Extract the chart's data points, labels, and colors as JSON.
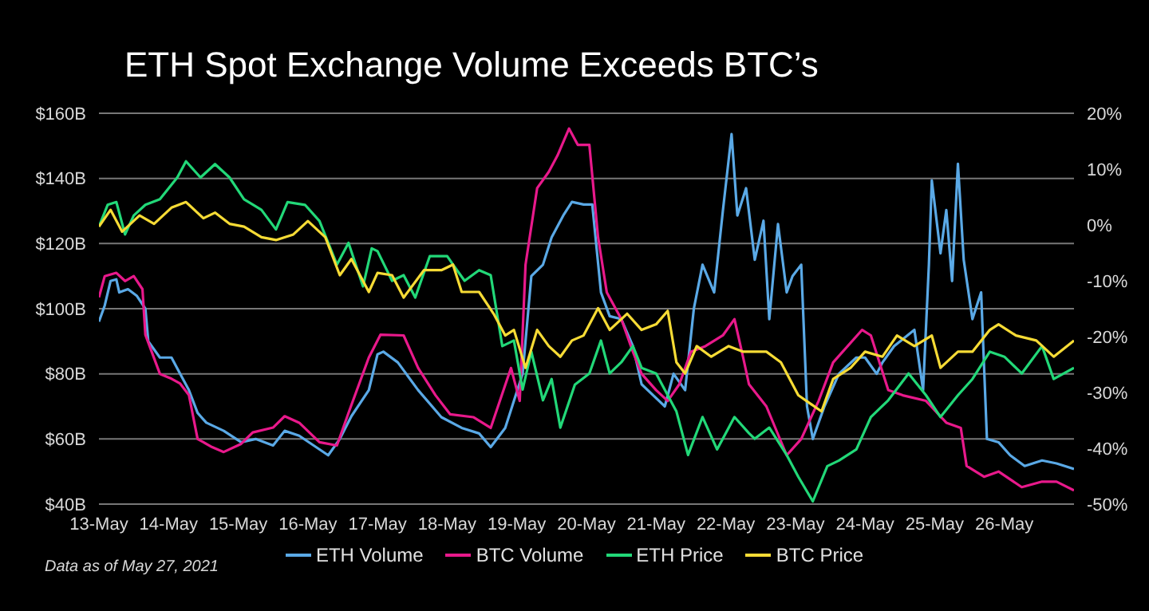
{
  "chart_data": {
    "type": "line",
    "title": "ETH Spot Exchange Volume Exceeds BTC’s",
    "annotations": [
      "Data as of May 27, 2021"
    ],
    "grid": "y",
    "legend": "bottom",
    "marker": "none",
    "line_style": "solid",
    "xlim": [
      "2021-05-13",
      "2021-05-27"
    ],
    "xticks": [
      {
        "value": "2021-05-13",
        "label": "13-May"
      },
      {
        "value": "2021-05-14",
        "label": "14-May"
      },
      {
        "value": "2021-05-15",
        "label": "15-May"
      },
      {
        "value": "2021-05-16",
        "label": "16-May"
      },
      {
        "value": "2021-05-17",
        "label": "17-May"
      },
      {
        "value": "2021-05-18",
        "label": "18-May"
      },
      {
        "value": "2021-05-19",
        "label": "19-May"
      },
      {
        "value": "2021-05-20",
        "label": "20-May"
      },
      {
        "value": "2021-05-21",
        "label": "21-May"
      },
      {
        "value": "2021-05-22",
        "label": "22-May"
      },
      {
        "value": "2021-05-23",
        "label": "23-May"
      },
      {
        "value": "2021-05-24",
        "label": "24-May"
      },
      {
        "value": "2021-05-25",
        "label": "25-May"
      },
      {
        "value": "2021-05-26",
        "label": "26-May"
      }
    ],
    "ylim": [
      40,
      160
    ],
    "yticks": [
      {
        "value": 40,
        "label": "$40B"
      },
      {
        "value": 60,
        "label": "$60B"
      },
      {
        "value": 80,
        "label": "$80B"
      },
      {
        "value": 100,
        "label": "$100B"
      },
      {
        "value": 120,
        "label": "$120B"
      },
      {
        "value": 140,
        "label": "$140B"
      },
      {
        "value": 160,
        "label": "$160B"
      }
    ],
    "y2lim": [
      -50,
      20
    ],
    "y2ticks": [
      {
        "value": -50,
        "label": "-50%"
      },
      {
        "value": -40,
        "label": "-40%"
      },
      {
        "value": -30,
        "label": "-30%"
      },
      {
        "value": -20,
        "label": "-20%"
      },
      {
        "value": -10,
        "label": "-10%"
      },
      {
        "value": 0,
        "label": "0%"
      },
      {
        "value": 10,
        "label": "10%"
      },
      {
        "value": 20,
        "label": "20%"
      }
    ],
    "series": [
      {
        "name": "ETH Volume",
        "color": "#5aa9e6",
        "x": [
          "2021-05-13T00:00",
          "2021-05-13T02:00",
          "2021-05-13T04:00",
          "2021-05-13T06:00",
          "2021-05-13T07:00",
          "2021-05-13T10:00",
          "2021-05-13T13:00",
          "2021-05-13T16:00",
          "2021-05-13T17:00",
          "2021-05-13T21:00",
          "2021-05-14T01:00",
          "2021-05-14T04:00",
          "2021-05-14T07:00",
          "2021-05-14T10:00",
          "2021-05-14T13:00",
          "2021-05-14T19:00",
          "2021-05-15T01:00",
          "2021-05-15T06:00",
          "2021-05-15T12:00",
          "2021-05-15T16:00",
          "2021-05-15T21:00",
          "2021-05-16T02:00",
          "2021-05-16T07:00",
          "2021-05-16T11:00",
          "2021-05-16T15:00",
          "2021-05-16T21:00",
          "2021-05-17T00:00",
          "2021-05-17T02:00",
          "2021-05-17T07:00",
          "2021-05-17T14:00",
          "2021-05-17T22:00",
          "2021-05-18T05:00",
          "2021-05-18T11:00",
          "2021-05-18T15:00",
          "2021-05-18T20:00",
          "2021-05-18T23:00",
          "2021-05-19T02:00",
          "2021-05-19T05:00",
          "2021-05-19T09:00",
          "2021-05-19T12:00",
          "2021-05-19T16:00",
          "2021-05-19T19:00",
          "2021-05-19T23:00",
          "2021-05-20T02:00",
          "2021-05-20T05:00",
          "2021-05-20T08:00",
          "2021-05-20T12:00",
          "2021-05-20T16:00",
          "2021-05-20T19:00",
          "2021-05-20T23:00",
          "2021-05-21T03:00",
          "2021-05-21T06:00",
          "2021-05-21T10:00",
          "2021-05-21T13:00",
          "2021-05-21T16:00",
          "2021-05-21T20:00",
          "2021-05-21T23:00",
          "2021-05-22T02:00",
          "2021-05-22T04:00",
          "2021-05-22T07:00",
          "2021-05-22T10:00",
          "2021-05-22T13:00",
          "2021-05-22T15:00",
          "2021-05-22T18:00",
          "2021-05-22T21:00",
          "2021-05-22T23:00",
          "2021-05-23T02:00",
          "2021-05-23T04:00",
          "2021-05-23T06:00",
          "2021-05-23T10:00",
          "2021-05-23T15:00",
          "2021-05-23T21:00",
          "2021-05-24T00:00",
          "2021-05-24T04:00",
          "2021-05-24T06:00",
          "2021-05-24T10:00",
          "2021-05-24T17:00",
          "2021-05-24T20:00",
          "2021-05-24T22:00",
          "2021-05-24T23:00",
          "2021-05-25T02:00",
          "2021-05-25T04:00",
          "2021-05-25T06:00",
          "2021-05-25T08:00",
          "2021-05-25T10:00",
          "2021-05-25T13:00",
          "2021-05-25T16:00",
          "2021-05-25T18:00",
          "2021-05-25T22:00",
          "2021-05-26T02:00",
          "2021-05-26T07:00",
          "2021-05-26T13:00",
          "2021-05-26T18:00",
          "2021-05-27T00:00"
        ],
        "values": [
          96,
          101,
          108.5,
          109,
          105,
          106,
          104,
          100,
          90,
          85,
          85,
          80,
          75,
          68,
          65,
          62.5,
          59,
          60,
          58,
          62.5,
          61,
          58,
          55,
          60,
          67,
          75,
          86,
          86.8,
          83.5,
          75,
          66.7,
          63.4,
          61.7,
          57.5,
          63.4,
          71.7,
          80,
          110,
          113.5,
          121.9,
          128.6,
          132.8,
          132,
          132,
          105,
          97.7,
          96.8,
          88.5,
          76.8,
          73.4,
          70,
          80,
          75,
          100,
          113.5,
          105,
          130,
          153.6,
          128.6,
          137,
          115,
          127,
          96.8,
          126,
          105,
          110,
          113.5,
          70,
          60,
          70,
          80,
          85,
          85,
          80,
          83.5,
          88.5,
          93.5,
          75,
          113.5,
          139.4,
          117,
          130.3,
          108.5,
          144.5,
          115,
          96.8,
          105,
          60,
          59,
          55,
          51.7,
          53.4,
          52.5,
          50.8
        ]
      },
      {
        "name": "BTC Volume",
        "color": "#e8198b",
        "x": [
          "2021-05-13T00:00",
          "2021-05-13T02:00",
          "2021-05-13T06:00",
          "2021-05-13T09:00",
          "2021-05-13T12:00",
          "2021-05-13T15:00",
          "2021-05-13T16:00",
          "2021-05-13T21:00",
          "2021-05-14T01:00",
          "2021-05-14T04:00",
          "2021-05-14T07:00",
          "2021-05-14T10:00",
          "2021-05-14T15:00",
          "2021-05-14T19:00",
          "2021-05-15T01:00",
          "2021-05-15T05:00",
          "2021-05-15T12:00",
          "2021-05-15T16:00",
          "2021-05-15T21:00",
          "2021-05-16T04:00",
          "2021-05-16T10:00",
          "2021-05-16T14:00",
          "2021-05-16T21:00",
          "2021-05-17T01:00",
          "2021-05-17T09:00",
          "2021-05-17T14:00",
          "2021-05-17T20:00",
          "2021-05-18T01:00",
          "2021-05-18T09:00",
          "2021-05-18T15:00",
          "2021-05-18T22:00",
          "2021-05-19T01:00",
          "2021-05-19T03:00",
          "2021-05-19T07:00",
          "2021-05-19T11:00",
          "2021-05-19T14:00",
          "2021-05-19T18:00",
          "2021-05-19T21:00",
          "2021-05-20T01:00",
          "2021-05-20T04:00",
          "2021-05-20T07:00",
          "2021-05-20T12:00",
          "2021-05-20T16:00",
          "2021-05-20T19:00",
          "2021-05-21T00:00",
          "2021-05-21T04:00",
          "2021-05-21T08:00",
          "2021-05-21T12:00",
          "2021-05-21T17:00",
          "2021-05-21T23:00",
          "2021-05-22T03:00",
          "2021-05-22T06:00",
          "2021-05-22T08:00",
          "2021-05-22T14:00",
          "2021-05-22T21:00",
          "2021-05-23T02:00",
          "2021-05-23T08:00",
          "2021-05-23T13:00",
          "2021-05-23T23:00",
          "2021-05-24T02:00",
          "2021-05-24T08:00",
          "2021-05-24T13:00",
          "2021-05-24T21:00",
          "2021-05-25T04:00",
          "2021-05-25T09:00",
          "2021-05-25T11:00",
          "2021-05-25T17:00",
          "2021-05-25T22:00",
          "2021-05-26T06:00",
          "2021-05-26T13:00",
          "2021-05-26T18:00",
          "2021-05-27T00:00"
        ],
        "values": [
          103.5,
          110,
          111,
          108.5,
          110,
          106,
          92,
          80,
          78.5,
          77,
          73.5,
          60,
          57.5,
          56,
          58.5,
          62,
          63.5,
          67,
          65,
          59,
          58,
          68,
          85,
          92,
          91.8,
          81.8,
          73.4,
          67.6,
          66.7,
          63.4,
          81.8,
          71.7,
          113.5,
          137,
          142,
          147,
          155.3,
          150.3,
          150.3,
          121.9,
          105,
          96.8,
          86.8,
          80,
          75,
          71.7,
          76.8,
          86.8,
          88.5,
          91.8,
          96.8,
          85,
          76.8,
          70,
          55,
          60,
          71.7,
          83.5,
          93.5,
          91.8,
          75,
          73.4,
          71.7,
          65,
          63.4,
          51.7,
          48.4,
          50,
          45.2,
          46.9,
          46.9,
          44.2
        ]
      },
      {
        "name": "ETH Price",
        "color": "#22d878",
        "axis": "y2",
        "x": [
          "2021-05-13T00:00",
          "2021-05-13T03:00",
          "2021-05-13T06:00",
          "2021-05-13T09:00",
          "2021-05-13T12:00",
          "2021-05-13T16:00",
          "2021-05-13T21:00",
          "2021-05-14T03:00",
          "2021-05-14T06:00",
          "2021-05-14T11:00",
          "2021-05-14T16:00",
          "2021-05-14T21:00",
          "2021-05-15T02:00",
          "2021-05-15T08:00",
          "2021-05-15T13:00",
          "2021-05-15T17:00",
          "2021-05-15T23:00",
          "2021-05-16T04:00",
          "2021-05-16T10:00",
          "2021-05-16T14:00",
          "2021-05-16T19:00",
          "2021-05-16T22:00",
          "2021-05-17T00:00",
          "2021-05-17T05:00",
          "2021-05-17T09:00",
          "2021-05-17T13:00",
          "2021-05-17T18:00",
          "2021-05-18T00:00",
          "2021-05-18T02:00",
          "2021-05-18T06:00",
          "2021-05-18T11:00",
          "2021-05-18T15:00",
          "2021-05-18T19:00",
          "2021-05-18T23:00",
          "2021-05-19T02:00",
          "2021-05-19T05:00",
          "2021-05-19T09:00",
          "2021-05-19T12:00",
          "2021-05-19T15:00",
          "2021-05-19T20:00",
          "2021-05-20T01:00",
          "2021-05-20T05:00",
          "2021-05-20T08:00",
          "2021-05-20T12:00",
          "2021-05-20T16:00",
          "2021-05-20T19:00",
          "2021-05-21T00:00",
          "2021-05-21T04:00",
          "2021-05-21T07:00",
          "2021-05-21T11:00",
          "2021-05-21T16:00",
          "2021-05-21T21:00",
          "2021-05-22T03:00",
          "2021-05-22T08:00",
          "2021-05-22T10:00",
          "2021-05-22T15:00",
          "2021-05-22T21:00",
          "2021-05-23T01:00",
          "2021-05-23T06:00",
          "2021-05-23T11:00",
          "2021-05-23T15:00",
          "2021-05-23T21:00",
          "2021-05-24T02:00",
          "2021-05-24T08:00",
          "2021-05-24T15:00",
          "2021-05-24T21:00",
          "2021-05-25T02:00",
          "2021-05-25T08:00",
          "2021-05-25T13:00",
          "2021-05-25T19:00",
          "2021-05-26T00:00",
          "2021-05-26T06:00",
          "2021-05-26T13:00",
          "2021-05-26T17:00",
          "2021-05-27T00:00"
        ],
        "values": [
          -0.3,
          3.6,
          4.1,
          -1.7,
          1.7,
          3.6,
          4.6,
          8.5,
          11.4,
          8.5,
          10.9,
          8.5,
          4.6,
          2.7,
          -0.8,
          4.1,
          3.6,
          0.7,
          -7.1,
          -3.2,
          -11,
          -4.2,
          -4.7,
          -10,
          -9,
          -13,
          -5.6,
          -5.6,
          -7.1,
          -10,
          -8.1,
          -9,
          -21.7,
          -20.7,
          -29.5,
          -22.7,
          -31.4,
          -27.6,
          -36.3,
          -28.6,
          -26.6,
          -20.7,
          -26.6,
          -24.6,
          -21.7,
          -25.6,
          -26.6,
          -30.5,
          -33.4,
          -41.2,
          -34.4,
          -40.2,
          -34.4,
          -37.3,
          -38.3,
          -36.3,
          -41.2,
          -45.1,
          -49.5,
          -43.2,
          -42.2,
          -40.2,
          -34.4,
          -31.4,
          -26.6,
          -30.5,
          -34.4,
          -30.5,
          -27.6,
          -22.7,
          -23.6,
          -26.6,
          -21.7,
          -27.6,
          -25.6
        ]
      },
      {
        "name": "BTC Price",
        "color": "#f6db35",
        "axis": "y2",
        "x": [
          "2021-05-13T00:00",
          "2021-05-13T04:00",
          "2021-05-13T08:00",
          "2021-05-13T14:00",
          "2021-05-13T19:00",
          "2021-05-14T01:00",
          "2021-05-14T06:00",
          "2021-05-14T12:00",
          "2021-05-14T16:00",
          "2021-05-14T21:00",
          "2021-05-15T02:00",
          "2021-05-15T08:00",
          "2021-05-15T13:00",
          "2021-05-15T19:00",
          "2021-05-16T00:00",
          "2021-05-16T06:00",
          "2021-05-16T11:00",
          "2021-05-16T15:00",
          "2021-05-16T21:00",
          "2021-05-17T00:00",
          "2021-05-17T05:00",
          "2021-05-17T09:00",
          "2021-05-17T16:00",
          "2021-05-17T22:00",
          "2021-05-18T02:00",
          "2021-05-18T05:00",
          "2021-05-18T11:00",
          "2021-05-18T16:00",
          "2021-05-18T20:00",
          "2021-05-18T23:00",
          "2021-05-19T03:00",
          "2021-05-19T07:00",
          "2021-05-19T11:00",
          "2021-05-19T15:00",
          "2021-05-19T19:00",
          "2021-05-19T23:00",
          "2021-05-20T04:00",
          "2021-05-20T08:00",
          "2021-05-20T14:00",
          "2021-05-20T19:00",
          "2021-05-21T00:00",
          "2021-05-21T04:00",
          "2021-05-21T07:00",
          "2021-05-21T10:00",
          "2021-05-21T14:00",
          "2021-05-21T19:00",
          "2021-05-22T01:00",
          "2021-05-22T06:00",
          "2021-05-22T14:00",
          "2021-05-22T19:00",
          "2021-05-23T01:00",
          "2021-05-23T09:00",
          "2021-05-23T13:00",
          "2021-05-23T19:00",
          "2021-05-24T00:00",
          "2021-05-24T06:00",
          "2021-05-24T11:00",
          "2021-05-24T17:00",
          "2021-05-24T23:00",
          "2021-05-25T02:00",
          "2021-05-25T08:00",
          "2021-05-25T13:00",
          "2021-05-25T19:00",
          "2021-05-25T22:00",
          "2021-05-26T04:00",
          "2021-05-26T11:00",
          "2021-05-26T17:00",
          "2021-05-27T00:00"
        ],
        "values": [
          -0.3,
          2.7,
          -1.2,
          1.7,
          0.2,
          3.1,
          4.1,
          1.2,
          2.2,
          0.2,
          -0.3,
          -2.2,
          -2.7,
          -1.7,
          0.7,
          -2.2,
          -9,
          -6.1,
          -12,
          -8.6,
          -9,
          -13,
          -8.1,
          -8.1,
          -7.1,
          -12,
          -12,
          -15.9,
          -19.8,
          -18.8,
          -25.6,
          -18.8,
          -21.7,
          -23.6,
          -20.7,
          -19.8,
          -14.9,
          -18.8,
          -15.9,
          -18.8,
          -17.8,
          -15.4,
          -24.6,
          -26.6,
          -21.7,
          -23.6,
          -21.7,
          -22.7,
          -22.7,
          -24.6,
          -30.5,
          -33.4,
          -27.6,
          -25.6,
          -22.7,
          -23.6,
          -19.8,
          -21.7,
          -19.8,
          -25.6,
          -22.7,
          -22.7,
          -18.8,
          -17.8,
          -19.8,
          -20.7,
          -23.6,
          -20.7
        ]
      }
    ]
  }
}
